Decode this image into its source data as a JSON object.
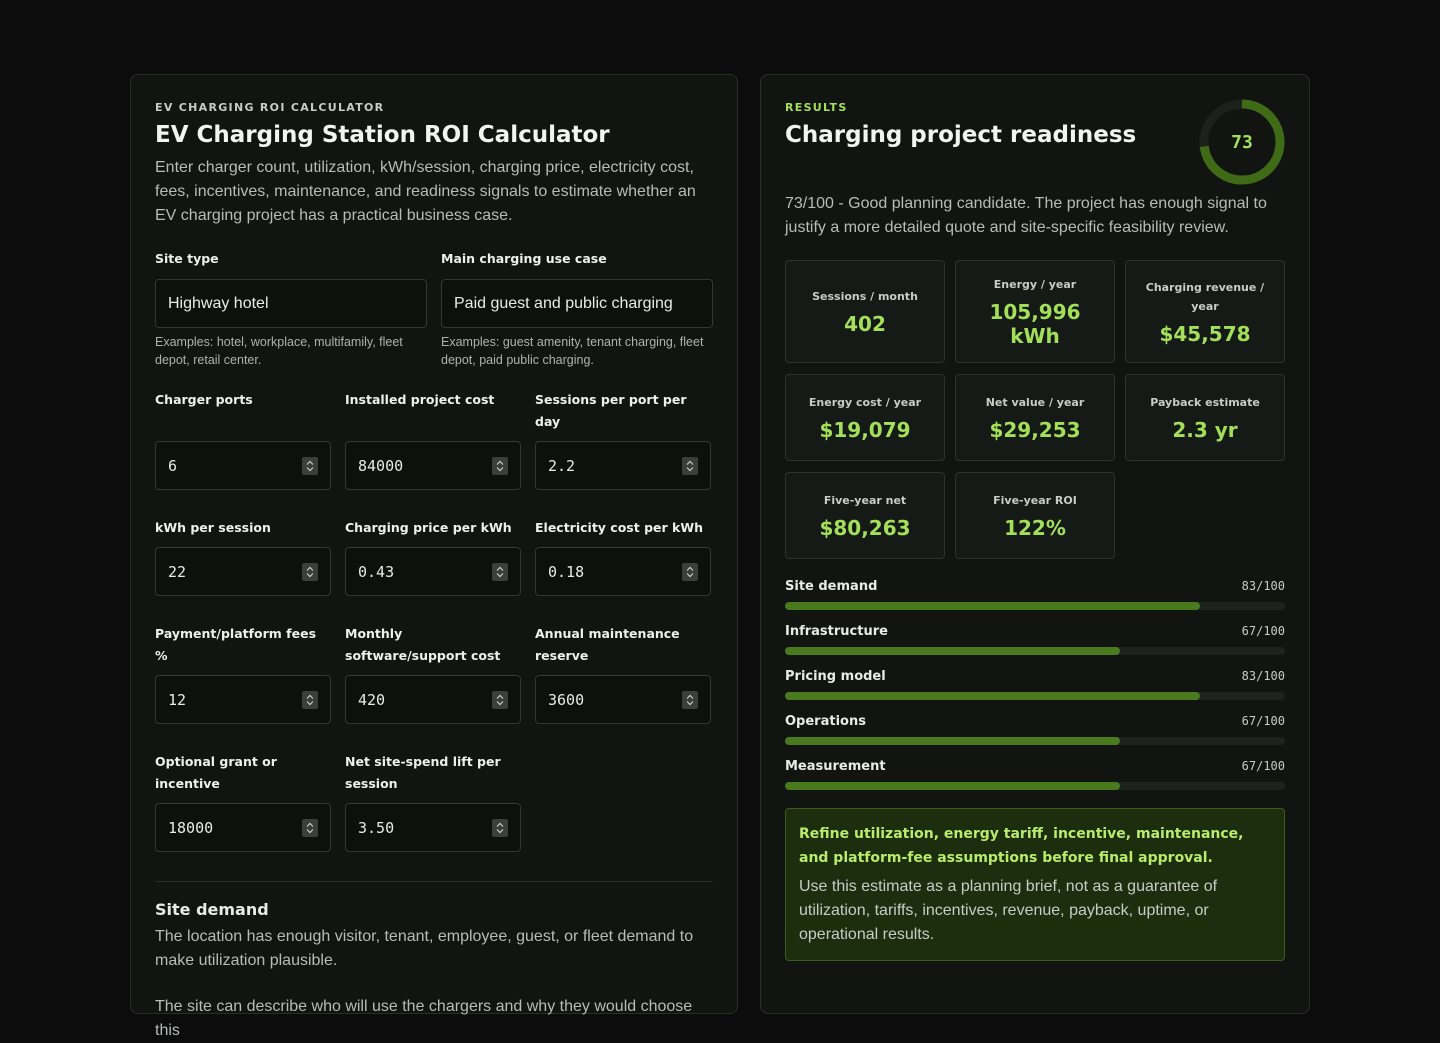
{
  "header": {
    "eyebrow": "EV CHARGING ROI CALCULATOR",
    "title": "EV Charging Station ROI Calculator",
    "description": "Enter charger count, utilization, kWh/session, charging price, electricity cost, fees, incentives, maintenance, and readiness signals to estimate whether an EV charging project has a practical business case."
  },
  "text_fields": [
    {
      "label": "Site type",
      "value": "Highway hotel",
      "hint": "Examples: hotel, workplace, multifamily, fleet depot, retail center."
    },
    {
      "label": "Main charging use case",
      "value": "Paid guest and public charging",
      "hint": "Examples: guest amenity, tenant charging, fleet depot, paid public charging."
    }
  ],
  "number_fields": [
    {
      "label": "Charger ports",
      "value": "6"
    },
    {
      "label": "Installed project cost",
      "value": "84000"
    },
    {
      "label": "Sessions per port per day",
      "value": "2.2"
    },
    {
      "label": "kWh per session",
      "value": "22"
    },
    {
      "label": "Charging price per kWh",
      "value": "0.43"
    },
    {
      "label": "Electricity cost per kWh",
      "value": "0.18"
    },
    {
      "label": "Payment/platform fees %",
      "value": "12"
    },
    {
      "label": "Monthly software/support cost",
      "value": "420"
    },
    {
      "label": "Annual maintenance reserve",
      "value": "3600"
    },
    {
      "label": "Optional grant or incentive",
      "value": "18000"
    },
    {
      "label": "Net site-spend lift per session",
      "value": "3.50"
    }
  ],
  "section": {
    "heading": "Site demand",
    "paragraphs": [
      "The location has enough visitor, tenant, employee, guest, or fleet demand to make utilization plausible.",
      "The site can describe who will use the chargers and why they would choose this"
    ]
  },
  "results": {
    "eyebrow": "RESULTS",
    "title": "Charging project readiness",
    "score": 73,
    "scale_max": 100,
    "summary": "73/100 - Good planning candidate. The project has enough signal to justify a more detailed quote and site-specific feasibility review.",
    "metrics": [
      {
        "label": "Sessions / month",
        "value": "402"
      },
      {
        "label": "Energy / year",
        "value": "105,996 kWh"
      },
      {
        "label": "Charging revenue / year",
        "value": "$45,578"
      },
      {
        "label": "Energy cost / year",
        "value": "$19,079"
      },
      {
        "label": "Net value / year",
        "value": "$29,253"
      },
      {
        "label": "Payback estimate",
        "value": "2.3 yr"
      },
      {
        "label": "Five-year net",
        "value": "$80,263"
      },
      {
        "label": "Five-year ROI",
        "value": "122%"
      }
    ],
    "bars": [
      {
        "label": "Site demand",
        "value": 83,
        "value_label": "83/100"
      },
      {
        "label": "Infrastructure",
        "value": 67,
        "value_label": "67/100"
      },
      {
        "label": "Pricing model",
        "value": 83,
        "value_label": "83/100"
      },
      {
        "label": "Operations",
        "value": 67,
        "value_label": "67/100"
      },
      {
        "label": "Measurement",
        "value": 67,
        "value_label": "67/100"
      }
    ],
    "note": {
      "title": "Refine utilization, energy tariff, incentive, maintenance, and platform-fee assumptions before final approval.",
      "body": "Use this estimate as a planning brief, not as a guarantee of utilization, tariffs, incentives, revenue, payback, uptime, or operational results."
    }
  }
}
